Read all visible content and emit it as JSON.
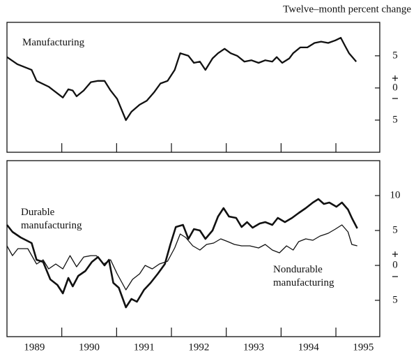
{
  "chart_data": [
    {
      "type": "line",
      "ylabel": "Twelve–month percent change",
      "xlim": [
        1989,
        1995.8
      ],
      "ylim": [
        -10,
        10.2
      ],
      "xtick_marks": [
        1990,
        1991,
        1992,
        1993,
        1994,
        1995
      ],
      "yticks": [
        {
          "value": 5,
          "label": "5"
        },
        {
          "value": 0,
          "label": "0"
        },
        {
          "value": -5,
          "label": "5"
        }
      ],
      "series": [
        {
          "name": "Manufacturing",
          "color": "#111111",
          "x": [
            1989.0,
            1989.19,
            1989.45,
            1989.54,
            1989.76,
            1990.02,
            1990.12,
            1990.2,
            1990.27,
            1990.4,
            1990.53,
            1990.66,
            1990.78,
            1990.89,
            1991.01,
            1991.17,
            1991.27,
            1991.42,
            1991.55,
            1991.68,
            1991.8,
            1991.93,
            1992.06,
            1992.16,
            1992.31,
            1992.41,
            1992.52,
            1992.62,
            1992.75,
            1992.85,
            1992.97,
            1993.08,
            1993.2,
            1993.33,
            1993.46,
            1993.59,
            1993.71,
            1993.84,
            1993.92,
            1994.02,
            1994.15,
            1994.22,
            1994.35,
            1994.48,
            1994.61,
            1994.73,
            1994.86,
            1994.99,
            1995.09,
            1995.17,
            1995.24,
            1995.37
          ],
          "values": [
            4.8,
            3.7,
            2.8,
            1.1,
            0.2,
            -1.5,
            -0.2,
            -0.4,
            -1.3,
            -0.4,
            0.9,
            1.1,
            1.1,
            -0.4,
            -1.7,
            -5.0,
            -3.7,
            -2.6,
            -2.0,
            -0.7,
            0.7,
            1.1,
            2.8,
            5.4,
            5.0,
            3.9,
            4.1,
            2.8,
            4.6,
            5.4,
            6.1,
            5.4,
            5.0,
            4.1,
            4.3,
            3.9,
            4.3,
            4.1,
            4.8,
            3.9,
            4.6,
            5.4,
            6.3,
            6.3,
            7.0,
            7.2,
            7.0,
            7.4,
            7.8,
            6.5,
            5.4,
            4.1
          ]
        }
      ]
    },
    {
      "type": "line",
      "xlim": [
        1989,
        1995.8
      ],
      "ylim": [
        -10.2,
        15
      ],
      "xtick_marks": [
        1990,
        1991,
        1992,
        1993,
        1994,
        1995
      ],
      "xticks": [
        {
          "value": 1989.5,
          "label": "1989"
        },
        {
          "value": 1990.5,
          "label": "1990"
        },
        {
          "value": 1991.5,
          "label": "1991"
        },
        {
          "value": 1992.5,
          "label": "1992"
        },
        {
          "value": 1993.5,
          "label": "1993"
        },
        {
          "value": 1994.5,
          "label": "1994"
        },
        {
          "value": 1995.5,
          "label": "1995"
        }
      ],
      "yticks": [
        10,
        5,
        0,
        {
          "value": -5,
          "label": "5"
        }
      ],
      "series": [
        {
          "name": "Durable manufacturing",
          "color": "#111111",
          "x": [
            1989.0,
            1989.1,
            1989.25,
            1989.45,
            1989.54,
            1989.66,
            1989.79,
            1989.92,
            1990.02,
            1990.12,
            1990.2,
            1990.3,
            1990.43,
            1990.55,
            1990.66,
            1990.78,
            1990.86,
            1990.94,
            1991.04,
            1991.17,
            1991.27,
            1991.37,
            1991.5,
            1991.62,
            1991.75,
            1991.88,
            1991.98,
            1992.08,
            1992.21,
            1992.31,
            1992.41,
            1992.52,
            1992.62,
            1992.75,
            1992.85,
            1992.95,
            1993.05,
            1993.18,
            1993.28,
            1993.38,
            1993.48,
            1993.61,
            1993.71,
            1993.84,
            1993.94,
            1994.07,
            1994.2,
            1994.32,
            1994.45,
            1994.58,
            1994.68,
            1994.78,
            1994.88,
            1995.01,
            1995.11,
            1995.22,
            1995.29,
            1995.39
          ],
          "values": [
            5.8,
            4.8,
            4.0,
            3.2,
            0.8,
            0.5,
            -2.0,
            -2.8,
            -4.0,
            -1.8,
            -3.0,
            -1.5,
            -0.8,
            0.5,
            1.2,
            0.0,
            0.8,
            -2.5,
            -3.2,
            -6.0,
            -4.8,
            -5.2,
            -3.5,
            -2.5,
            -1.2,
            0.2,
            3.0,
            5.5,
            5.8,
            3.8,
            5.2,
            5.0,
            3.8,
            5.0,
            7.0,
            8.2,
            7.0,
            6.8,
            5.5,
            6.2,
            5.4,
            6.0,
            6.2,
            5.8,
            6.8,
            6.2,
            6.8,
            7.5,
            8.2,
            9.0,
            9.5,
            8.8,
            9.0,
            8.4,
            9.0,
            8.0,
            6.8,
            5.3
          ]
        },
        {
          "name": "Nondurable manufacturing",
          "color": "#111111",
          "x": [
            1989.0,
            1989.1,
            1989.2,
            1989.38,
            1989.54,
            1989.66,
            1989.76,
            1989.89,
            1990.02,
            1990.15,
            1990.27,
            1990.4,
            1990.53,
            1990.63,
            1990.76,
            1990.89,
            1991.01,
            1991.17,
            1991.29,
            1991.42,
            1991.52,
            1991.65,
            1991.78,
            1991.93,
            1992.06,
            1992.16,
            1992.26,
            1992.39,
            1992.52,
            1992.64,
            1992.77,
            1992.9,
            1993.03,
            1993.15,
            1993.28,
            1993.43,
            1993.59,
            1993.71,
            1993.84,
            1993.97,
            1994.1,
            1994.22,
            1994.32,
            1994.45,
            1994.58,
            1994.71,
            1994.86,
            1994.99,
            1995.11,
            1995.22,
            1995.29,
            1995.39
          ],
          "values": [
            2.8,
            1.4,
            2.4,
            2.4,
            0.2,
            0.8,
            -0.5,
            0.2,
            -0.5,
            1.4,
            -0.2,
            1.2,
            1.4,
            1.4,
            0.2,
            0.8,
            -1.2,
            -3.5,
            -2.0,
            -1.2,
            0.0,
            -0.5,
            0.2,
            0.6,
            2.5,
            4.5,
            4.0,
            2.8,
            2.2,
            3.0,
            3.2,
            3.8,
            3.4,
            3.0,
            2.8,
            2.8,
            2.5,
            3.0,
            2.2,
            1.8,
            2.8,
            2.2,
            3.4,
            3.8,
            3.6,
            4.2,
            4.6,
            5.2,
            5.8,
            4.8,
            3.0,
            2.8
          ]
        }
      ]
    }
  ]
}
